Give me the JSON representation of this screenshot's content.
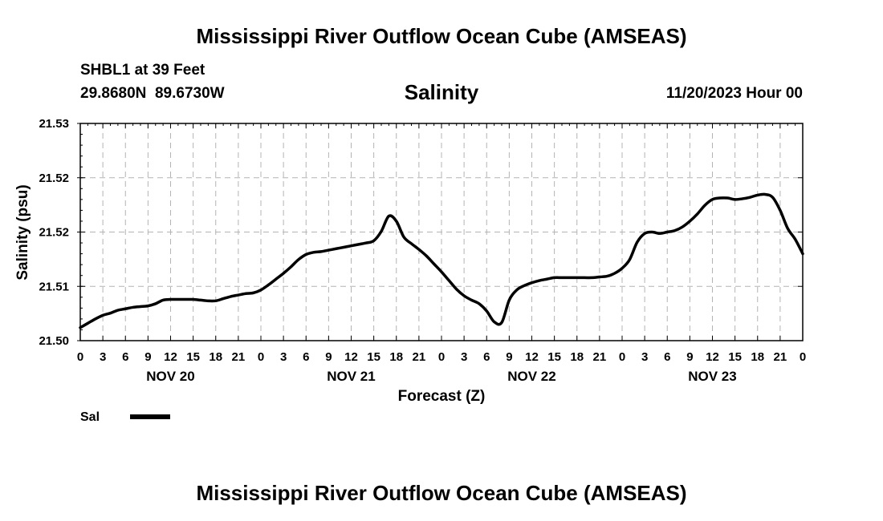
{
  "header": {
    "title": "Mississippi River Outflow Ocean Cube (AMSEAS)",
    "station": "SHBL1 at 39 Feet",
    "coords": "29.8680N  89.6730W",
    "variable": "Salinity",
    "datetime": "11/20/2023 Hour 00"
  },
  "footer": {
    "title": "Mississippi River Outflow Ocean Cube (AMSEAS)"
  },
  "legend": {
    "label": "Sal"
  },
  "colors": {
    "line": "#000000",
    "grid": "#b4b4b4"
  },
  "chart_data": {
    "type": "line",
    "title": "Salinity",
    "xlabel": "Forecast (Z)",
    "ylabel": "Salinity (psu)",
    "xlim": [
      0,
      96
    ],
    "ylim": [
      21.5,
      21.53
    ],
    "grid": true,
    "legend_position": "bottom-left",
    "xtick_labels": [
      "0",
      "3",
      "6",
      "9",
      "12",
      "15",
      "18",
      "21",
      "0",
      "3",
      "6",
      "9",
      "12",
      "15",
      "18",
      "21",
      "0",
      "3",
      "6",
      "9",
      "12",
      "15",
      "18",
      "21",
      "0",
      "3",
      "6",
      "9",
      "12",
      "15",
      "18",
      "21",
      "0"
    ],
    "day_labels": [
      {
        "label": "NOV 20",
        "hour": 12
      },
      {
        "label": "NOV 21",
        "hour": 36
      },
      {
        "label": "NOV 22",
        "hour": 60
      },
      {
        "label": "NOV 23",
        "hour": 84
      }
    ],
    "ytick_values": [
      21.5,
      21.5075,
      21.515,
      21.5225,
      21.53
    ],
    "ytick_labels": [
      "21.50",
      "21.51",
      "21.52",
      "21.52",
      "21.53"
    ],
    "series": [
      {
        "name": "Sal",
        "x": [
          0,
          1,
          2,
          3,
          4,
          5,
          6,
          7,
          8,
          9,
          10,
          11,
          12,
          13,
          14,
          15,
          16,
          17,
          18,
          19,
          20,
          21,
          22,
          23,
          24,
          25,
          26,
          27,
          28,
          29,
          30,
          31,
          32,
          33,
          34,
          35,
          36,
          37,
          38,
          39,
          40,
          41,
          42,
          43,
          44,
          45,
          46,
          47,
          48,
          49,
          50,
          51,
          52,
          53,
          54,
          55,
          56,
          57,
          58,
          59,
          60,
          61,
          62,
          63,
          64,
          65,
          66,
          67,
          68,
          69,
          70,
          71,
          72,
          73,
          74,
          75,
          76,
          77,
          78,
          79,
          80,
          81,
          82,
          83,
          84,
          85,
          86,
          87,
          88,
          89,
          90,
          91,
          92,
          93,
          94,
          95,
          96
        ],
        "values": [
          21.5018,
          21.5024,
          21.503,
          21.5035,
          21.5038,
          21.5042,
          21.5044,
          21.5046,
          21.5047,
          21.5048,
          21.5051,
          21.5056,
          21.5057,
          21.5057,
          21.5057,
          21.5057,
          21.5056,
          21.5055,
          21.5055,
          21.5058,
          21.5061,
          21.5063,
          21.5065,
          21.5066,
          21.507,
          21.5077,
          21.5085,
          21.5093,
          21.5102,
          21.5112,
          21.5119,
          21.5122,
          21.5123,
          21.5125,
          21.5127,
          21.5129,
          21.5131,
          21.5133,
          21.5135,
          21.5138,
          21.5151,
          21.5172,
          21.5165,
          21.5143,
          21.5134,
          21.5126,
          21.5117,
          21.5106,
          21.5095,
          21.5083,
          21.5071,
          21.5062,
          21.5056,
          21.5051,
          21.5041,
          21.5026,
          21.5025,
          21.5056,
          21.507,
          21.5076,
          21.508,
          21.5083,
          21.5085,
          21.5087,
          21.5087,
          21.5087,
          21.5087,
          21.5087,
          21.5087,
          21.5088,
          21.5089,
          21.5093,
          21.51,
          21.5112,
          21.5136,
          21.5148,
          21.515,
          21.5148,
          21.515,
          21.5152,
          21.5157,
          21.5165,
          21.5175,
          21.5187,
          21.5195,
          21.5197,
          21.5197,
          21.5195,
          21.5196,
          21.5198,
          21.5201,
          21.5202,
          21.5198,
          21.518,
          21.5155,
          21.514,
          21.512
        ]
      }
    ]
  }
}
